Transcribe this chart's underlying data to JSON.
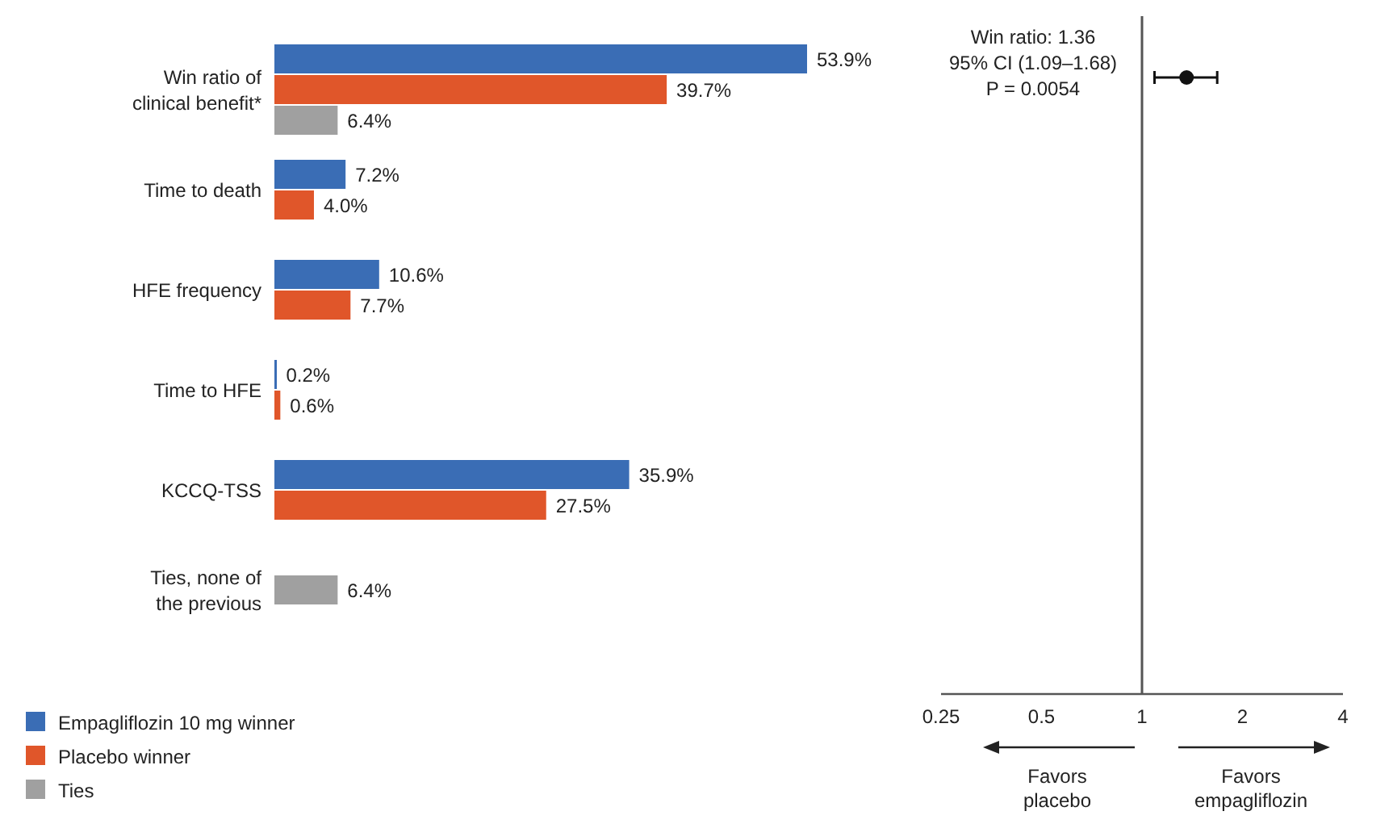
{
  "chart_data": [
    {
      "type": "bar",
      "orientation": "horizontal",
      "categories": [
        "Win ratio of clinical benefit*",
        "Time to death",
        "HFE frequency",
        "Time to HFE",
        "KCCQ-TSS",
        "Ties, none of the previous"
      ],
      "relative": false,
      "series": [
        {
          "name": "Empagliflozin 10 mg winner",
          "color": "#3a6db5",
          "values": [
            53.9,
            7.2,
            10.6,
            0.2,
            35.9,
            null
          ],
          "value_labels": [
            "53.9%",
            "7.2%",
            "10.6%",
            "0.2%",
            "35.9%",
            null
          ]
        },
        {
          "name": "Placebo winner",
          "color": "#e0562a",
          "values": [
            39.7,
            4.0,
            7.7,
            0.6,
            27.5,
            null
          ],
          "value_labels": [
            "39.7%",
            "4.0%",
            "7.7%",
            "0.6%",
            "27.5%",
            null
          ]
        },
        {
          "name": "Ties",
          "color": "#a0a0a0",
          "values": [
            6.4,
            null,
            null,
            null,
            null,
            6.4
          ],
          "value_labels": [
            "6.4%",
            null,
            null,
            null,
            null,
            "6.4%"
          ]
        }
      ],
      "legend": "bottom left"
    },
    {
      "type": "scatter",
      "orientation": "horizontal",
      "categories": [
        null,
        null,
        null,
        null,
        null,
        null
      ],
      "values": [
        1.36,
        null,
        null,
        null,
        null,
        null
      ],
      "errors": [
        [
          1.09,
          1.68
        ],
        null,
        null,
        null,
        null,
        null
      ],
      "color": "#111111",
      "marker": "circle",
      "log": "x",
      "xlim": [
        0.25,
        4
      ],
      "xticks": [
        0.25,
        0.5,
        1,
        2,
        4
      ],
      "ref_lines": [
        {
          "axis": "x",
          "value": 1,
          "color": "#555555"
        }
      ],
      "annotations": [
        "Win ratio: 1.36",
        "95% CI (1.09–1.68)",
        "P = 0.0054",
        "Favors placebo",
        "Favors empagliflozin"
      ]
    }
  ]
}
